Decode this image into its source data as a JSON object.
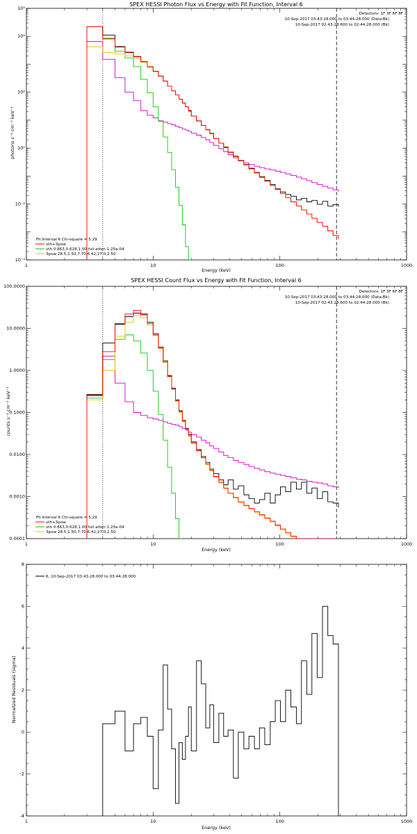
{
  "colors": {
    "data": "#000000",
    "vth_3pow": "#ff0000",
    "vth": "#00cc00",
    "three_pow": "#e6c200",
    "background": "#cc00cc"
  },
  "chart_data": [
    {
      "type": "line",
      "title": "SPEX HESSI Photon Flux vs Energy with Fit Function, Interval 6",
      "xlabel": "Energy (keV)",
      "ylabel": "photons s⁻¹ cm⁻² keV⁻¹",
      "xscale": "log",
      "yscale": "log",
      "xlim": [
        1,
        1000
      ],
      "ylim": [
        0.0001,
        100000
      ],
      "xticks": [
        "1",
        "10",
        "100",
        "1000"
      ],
      "yticks": [
        "10⁻⁴",
        "10⁻²",
        "10⁰",
        "10²",
        "10⁴",
        "10⁵"
      ],
      "info": [
        "Detectors: 1F 3F 6F 8F",
        "10-Sep-2017 03:43:28.000 to 03:44:28.000 (Data-Bk)",
        "10-Sep-2017 02:43:28.600 to 02:44:28.000 (Bk)"
      ],
      "legend": [
        "Fit Interval 6   Chi-square = 5.29",
        "vth+3pow",
        "vth 0.863,0.628,1.00  full atten 1.25e-04",
        "3pow 28.5,1.50,7.70,6.42,27.0,2.50"
      ],
      "legend_position": "lower-left",
      "energy_range": [
        4.0,
        280.0
      ],
      "x_bin_edges": [
        3,
        4,
        5,
        6,
        7,
        8,
        9,
        10,
        11,
        12,
        13,
        14,
        15,
        16,
        17,
        18,
        19,
        20,
        22,
        24,
        26,
        28,
        30,
        33,
        36,
        39,
        43,
        47,
        52,
        57,
        63,
        69,
        76,
        84,
        92,
        101,
        111,
        122,
        135,
        148,
        163,
        179,
        197,
        217,
        239,
        263,
        290
      ],
      "series": [
        {
          "name": "data",
          "color": "#000000",
          "values": [
            22000,
            11000,
            4300,
            2700,
            1900,
            1250,
            820,
            560,
            380,
            250,
            165,
            112,
            80,
            56,
            41,
            30,
            22,
            14,
            9.5,
            6.5,
            4.6,
            3.4,
            2.2,
            1.5,
            1.1,
            0.72,
            0.52,
            0.36,
            0.26,
            0.19,
            0.135,
            0.095,
            0.07,
            0.05,
            0.035,
            0.027,
            0.022,
            0.019,
            0.014,
            0.016,
            0.012,
            0.0135,
            0.0098,
            0.0125,
            0.0085,
            0.0095,
            0.008
          ]
        },
        {
          "name": "vth+3pow",
          "color": "#ff0000",
          "values": [
            22000,
            8500,
            4100,
            2600,
            1850,
            1230,
            810,
            555,
            375,
            250,
            165,
            112,
            80,
            56,
            41,
            30,
            21,
            14,
            9.3,
            6.4,
            4.5,
            3.3,
            2.2,
            1.5,
            1.05,
            0.7,
            0.5,
            0.35,
            0.25,
            0.18,
            0.13,
            0.09,
            0.065,
            0.046,
            0.033,
            0.024,
            0.017,
            0.012,
            0.0086,
            0.0062,
            0.0044,
            0.0031,
            0.0022,
            0.0016,
            0.0011,
            0.00075,
            0.00055
          ]
        },
        {
          "name": "vth",
          "color": "#00cc00",
          "values": [
            22000,
            8000,
            2900,
            1700,
            820,
            290,
            95,
            30,
            9,
            2.5,
            0.7,
            0.17,
            0.04,
            0.009,
            0.0018,
            0.0003,
            0.0001
          ]
        },
        {
          "name": "3pow",
          "color": "#e6c200",
          "values": [
            4200,
            2600,
            2300,
            2000,
            1650,
            1150,
            780,
            540,
            370,
            245,
            165,
            112,
            80,
            56,
            41,
            30,
            21,
            14,
            9.3,
            6.4,
            4.5,
            3.3,
            2.2,
            1.5,
            1.05,
            0.7,
            0.5,
            0.35,
            0.25,
            0.18,
            0.13,
            0.09,
            0.065,
            0.046,
            0.033,
            0.024,
            0.017,
            0.012,
            0.0086,
            0.0062,
            0.0044,
            0.0031,
            0.0022,
            0.0016,
            0.0011,
            0.00075,
            0.00055
          ]
        },
        {
          "name": "background",
          "color": "#cc00cc",
          "values": [
            6500,
            1500,
            330,
            100,
            50,
            22,
            15,
            12,
            9.5,
            8.5,
            7.5,
            6.8,
            6.0,
            5.4,
            4.8,
            4.4,
            4.0,
            3.4,
            2.9,
            2.4,
            2.0,
            1.6,
            1.25,
            0.95,
            0.75,
            0.58,
            0.45,
            0.36,
            0.3,
            0.26,
            0.225,
            0.2,
            0.18,
            0.165,
            0.15,
            0.135,
            0.12,
            0.105,
            0.092,
            0.08,
            0.068,
            0.058,
            0.05,
            0.043,
            0.037,
            0.032,
            0.028
          ]
        }
      ]
    },
    {
      "type": "line",
      "title": "SPEX HESSI Count Flux vs Energy with Fit Function, Interval 6",
      "xlabel": "Energy (keV)",
      "ylabel": "counts s⁻¹ cm⁻² keV⁻¹",
      "xscale": "log",
      "yscale": "log",
      "xlim": [
        1,
        1000
      ],
      "ylim": [
        0.0001,
        100
      ],
      "xticks": [
        "1",
        "10",
        "100",
        "1000"
      ],
      "yticks": [
        "0.0001",
        "0.0010",
        "0.0100",
        "0.1000",
        "1.0000",
        "10.0000",
        "100.0000"
      ],
      "info": [
        "Detectors: 1F 3F 6F 8F",
        "10-Sep-2017 03:43:28.000 to 03:44:28.000 (Data-Bk)",
        "10-Sep-2017 02:43:28.600 to 02:44:28.000 (Bk)"
      ],
      "legend": [
        "Fit Interval 6   Chi-square = 5.29",
        "vth+3pow",
        "vth 0.863,0.628,1.00  full atten 1.25e-04",
        "3pow 28.5,1.50,7.70,6.42,27.0,2.50"
      ],
      "legend_position": "lower-left",
      "energy_range": [
        4.0,
        280.0
      ],
      "x_bin_edges": [
        3,
        4,
        5,
        6,
        7,
        8,
        9,
        10,
        11,
        12,
        13,
        14,
        15,
        16,
        17,
        18,
        19,
        20,
        22,
        24,
        26,
        28,
        30,
        33,
        36,
        39,
        43,
        47,
        52,
        57,
        63,
        69,
        76,
        84,
        92,
        101,
        111,
        122,
        135,
        148,
        163,
        179,
        197,
        217,
        239,
        263,
        290
      ],
      "series": [
        {
          "name": "data",
          "color": "#000000",
          "values": [
            0.27,
            4.5,
            12.5,
            19,
            23,
            22,
            14,
            7.5,
            3.6,
            1.7,
            0.75,
            0.38,
            0.2,
            0.11,
            0.065,
            0.042,
            0.03,
            0.02,
            0.013,
            0.009,
            0.0065,
            0.0045,
            0.0035,
            0.0025,
            0.0019,
            0.0025,
            0.0015,
            0.0018,
            0.0011,
            0.0009,
            0.0007,
            0.00085,
            0.0012,
            0.0007,
            0.0011,
            0.0017,
            0.0013,
            0.0022,
            0.0015,
            0.0022,
            0.0012,
            0.0016,
            0.0009,
            0.0013,
            0.00075,
            0.0007,
            0.00055
          ]
        },
        {
          "name": "vth+3pow",
          "color": "#ff0000",
          "values": [
            0.26,
            2.8,
            13,
            22,
            27,
            21,
            13,
            7,
            3.4,
            1.6,
            0.72,
            0.36,
            0.19,
            0.105,
            0.062,
            0.04,
            0.028,
            0.019,
            0.0125,
            0.0085,
            0.006,
            0.0042,
            0.003,
            0.0022,
            0.0016,
            0.0012,
            0.00095,
            0.00075,
            0.00062,
            0.00052,
            0.00044,
            0.00037,
            0.00031,
            0.00026,
            0.00021,
            0.00017,
            0.00014,
            0.000115,
            0.0001,
            0.0001,
            0.0001,
            0.0001,
            0.0001,
            0.0001,
            0.0001,
            0.0001,
            0.0001
          ]
        },
        {
          "name": "vth",
          "color": "#00cc00",
          "values": [
            0.22,
            1.8,
            5.5,
            7.0,
            5.0,
            2.6,
            1.0,
            0.32,
            0.09,
            0.022,
            0.005,
            0.0012,
            0.0003,
            0.0001
          ]
        },
        {
          "name": "3pow",
          "color": "#e6c200",
          "values": [
            0.2,
            1.0,
            6.5,
            14,
            20,
            18,
            12,
            6.7,
            3.3,
            1.55,
            0.7,
            0.35,
            0.185,
            0.1,
            0.06,
            0.039,
            0.027,
            0.018,
            0.012,
            0.0082,
            0.0058,
            0.0041,
            0.0029,
            0.0021,
            0.00155,
            0.0012,
            0.00092,
            0.00073,
            0.0006,
            0.0005,
            0.00042,
            0.00035,
            0.0003,
            0.00025,
            0.0002,
            0.00016,
            0.00013,
            0.00011,
            0.0001,
            0.0001,
            0.0001,
            0.0001,
            0.0001,
            0.0001,
            0.0001,
            0.0001,
            0.0001
          ]
        },
        {
          "name": "background",
          "color": "#cc00cc",
          "values": [
            0.25,
            2.2,
            0.5,
            0.18,
            0.1,
            0.085,
            0.075,
            0.07,
            0.065,
            0.06,
            0.055,
            0.052,
            0.05,
            0.046,
            0.042,
            0.038,
            0.034,
            0.03,
            0.026,
            0.022,
            0.019,
            0.016,
            0.014,
            0.0115,
            0.0095,
            0.0085,
            0.0072,
            0.0065,
            0.0058,
            0.0052,
            0.0047,
            0.0043,
            0.0039,
            0.0036,
            0.0034,
            0.0032,
            0.003,
            0.0028,
            0.0026,
            0.0025,
            0.0023,
            0.0022,
            0.0021,
            0.002,
            0.0018,
            0.0017,
            0.0016
          ]
        }
      ]
    },
    {
      "type": "line",
      "title": "",
      "xlabel": "Energy (keV)",
      "ylabel": "Normalized Residuals (sigma)",
      "xscale": "log",
      "yscale": "linear",
      "xlim": [
        1,
        1000
      ],
      "ylim": [
        -4,
        8
      ],
      "xticks": [
        "1",
        "10",
        "100",
        "1000"
      ],
      "yticks": [
        "-4",
        "-2",
        "0",
        "2",
        "4",
        "6",
        "8"
      ],
      "legend": [
        "6, 10-Sep-2017 03:43:28.000 to 03:44:28.000"
      ],
      "legend_position": "top-left",
      "x_bin_edges": [
        4,
        5,
        6,
        7,
        8,
        9,
        10,
        11,
        12,
        13,
        14,
        15,
        16,
        17,
        18,
        19,
        20,
        22,
        24,
        26,
        28,
        30,
        33,
        36,
        39,
        43,
        47,
        52,
        57,
        63,
        69,
        76,
        84,
        92,
        101,
        111,
        122,
        135,
        148,
        163,
        179,
        197,
        217,
        239,
        263,
        290
      ],
      "series": [
        {
          "name": "6, 10-Sep-2017 03:43:28.000 to 03:44:28.000",
          "color": "#000000",
          "values": [
            0.4,
            1.0,
            -0.9,
            0.4,
            0.7,
            -0.2,
            -2.7,
            0.1,
            3.2,
            1.1,
            -0.8,
            -3.4,
            -0.5,
            -1.3,
            -0.2,
            1.2,
            -0.9,
            3.4,
            2.3,
            0.2,
            1.3,
            -0.5,
            0.9,
            -0.2,
            0.1,
            -2.2,
            0.0,
            -0.8,
            -0.2,
            -0.8,
            0.2,
            -0.6,
            0.5,
            1.5,
            0.5,
            2.0,
            1.2,
            0.4,
            3.4,
            1.8,
            4.7,
            2.6,
            6.0,
            4.6,
            4.2
          ]
        }
      ]
    }
  ]
}
